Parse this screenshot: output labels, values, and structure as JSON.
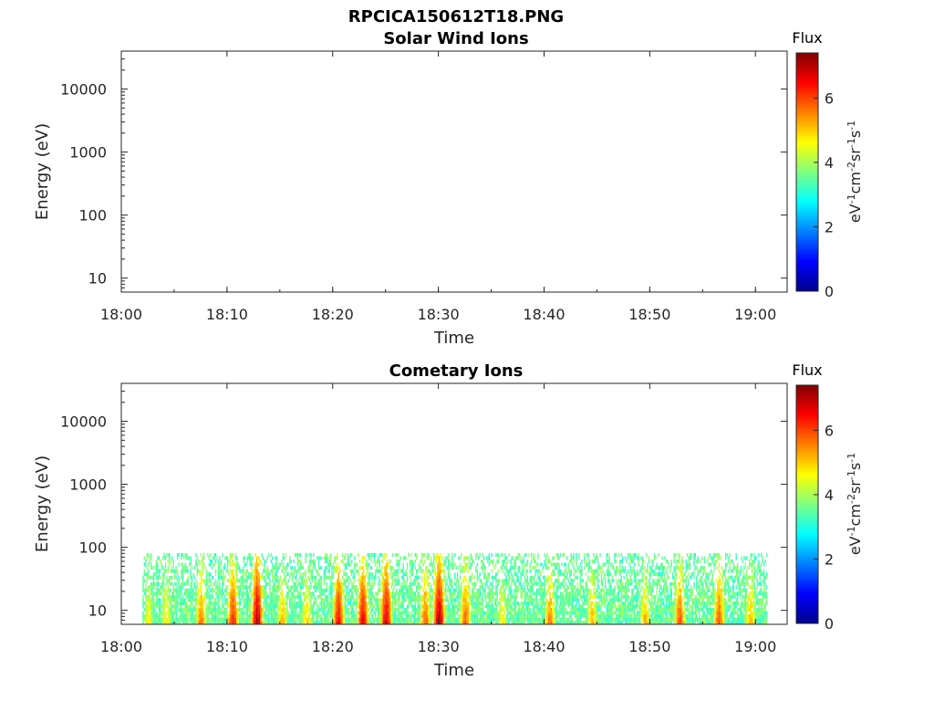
{
  "figure": {
    "title": "RPCICA150612T18.PNG"
  },
  "colors": {
    "axis": "#262626",
    "background": "#ffffff"
  },
  "chart_data": [
    {
      "type": "heatmap",
      "title": "Solar Wind Ions",
      "xlabel": "Time",
      "ylabel": "Energy (eV)",
      "xlim": [
        "18:00",
        "19:03"
      ],
      "xticks": [
        "18:00",
        "18:10",
        "18:20",
        "18:30",
        "18:40",
        "18:50",
        "19:00"
      ],
      "yscale": "log",
      "ylim": [
        6,
        40000
      ],
      "yticks": [
        "10",
        "100",
        "1000",
        "10000"
      ],
      "colorbar": {
        "title": "Flux",
        "label": "eV-1cm-2sr-1s-1",
        "range": [
          0,
          7.4
        ],
        "ticks": [
          "0",
          "2",
          "4",
          "6"
        ],
        "colormap": "jet"
      },
      "grid": false,
      "data": "empty"
    },
    {
      "type": "heatmap",
      "title": "Cometary Ions",
      "xlabel": "Time",
      "ylabel": "Energy (eV)",
      "xlim": [
        "18:00",
        "19:03"
      ],
      "xticks": [
        "18:00",
        "18:10",
        "18:20",
        "18:30",
        "18:40",
        "18:50",
        "19:00"
      ],
      "yscale": "log",
      "ylim": [
        6,
        40000
      ],
      "yticks": [
        "10",
        "100",
        "1000",
        "10000"
      ],
      "colorbar": {
        "title": "Flux",
        "label": "eV-1cm-2sr-1s-1",
        "range": [
          0,
          7.4
        ],
        "ticks": [
          "0",
          "2",
          "4",
          "6"
        ],
        "colormap": "jet"
      },
      "grid": false,
      "data_time_range": [
        "18:02",
        "19:01"
      ],
      "data_energy_range_eV": [
        6,
        80
      ],
      "bursts": [
        {
          "t": 2.5,
          "w": 0.8,
          "flux": 4.5
        },
        {
          "t": 4.2,
          "w": 0.8,
          "flux": 4.6
        },
        {
          "t": 7.5,
          "w": 0.8,
          "flux": 5.4
        },
        {
          "t": 10.5,
          "w": 0.8,
          "flux": 6.1
        },
        {
          "t": 12.8,
          "w": 0.8,
          "flux": 6.9
        },
        {
          "t": 15.2,
          "w": 0.8,
          "flux": 5.0
        },
        {
          "t": 17.5,
          "w": 0.8,
          "flux": 4.8
        },
        {
          "t": 20.5,
          "w": 0.8,
          "flux": 6.3
        },
        {
          "t": 22.8,
          "w": 0.8,
          "flux": 6.4
        },
        {
          "t": 25.0,
          "w": 0.8,
          "flux": 6.6
        },
        {
          "t": 28.7,
          "w": 0.8,
          "flux": 5.6
        },
        {
          "t": 30.0,
          "w": 0.8,
          "flux": 6.9
        },
        {
          "t": 32.5,
          "w": 0.8,
          "flux": 5.6
        },
        {
          "t": 36.0,
          "w": 0.8,
          "flux": 4.6
        },
        {
          "t": 40.5,
          "w": 0.8,
          "flux": 5.4
        },
        {
          "t": 44.5,
          "w": 0.8,
          "flux": 5.0
        },
        {
          "t": 49.5,
          "w": 0.8,
          "flux": 5.0
        },
        {
          "t": 52.8,
          "w": 0.8,
          "flux": 5.7
        },
        {
          "t": 56.5,
          "w": 0.8,
          "flux": 5.7
        },
        {
          "t": 59.5,
          "w": 0.8,
          "flux": 5.0
        }
      ]
    }
  ]
}
